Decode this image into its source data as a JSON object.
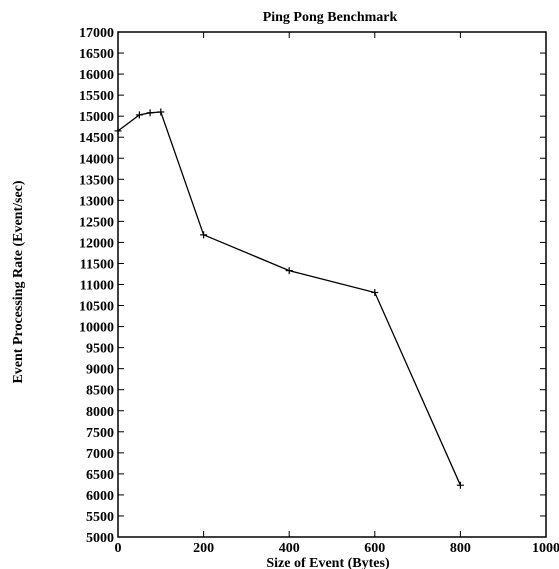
{
  "chart_data": {
    "type": "line",
    "title": "Ping Pong Benchmark",
    "xlabel": "Size of  Event (Bytes)",
    "ylabel": "Event Processing Rate (Event/sec)",
    "xlim": [
      0,
      1000
    ],
    "ylim": [
      5000,
      17000
    ],
    "xticks": [
      0,
      200,
      400,
      600,
      800,
      1000
    ],
    "yticks": [
      5000,
      5500,
      6000,
      6500,
      7000,
      7500,
      8000,
      8500,
      9000,
      9500,
      10000,
      10500,
      11000,
      11500,
      12000,
      12500,
      13000,
      13500,
      14000,
      14500,
      15000,
      15500,
      16000,
      16500,
      17000
    ],
    "xtick_labels": [
      "0",
      "200",
      "400",
      "600",
      "800",
      "1000"
    ],
    "ytick_labels": [
      "5000",
      "5500",
      "6000",
      "6500",
      "7000",
      "7500",
      "8000",
      "8500",
      "9000",
      "9500",
      "10000",
      "10500",
      "11000",
      "11500",
      "12000",
      "12500",
      "13000",
      "13500",
      "14000",
      "14500",
      "15000",
      "15500",
      "16000",
      "16500",
      "17000"
    ],
    "grid": false,
    "legend": "none",
    "marker": "plus",
    "series": [
      {
        "x": [
          0,
          50,
          75,
          100,
          200,
          400,
          600,
          800
        ],
        "y": [
          14650,
          15030,
          15080,
          15100,
          12180,
          11330,
          10810,
          6230
        ]
      }
    ],
    "colors": {
      "line": "#000000",
      "axis": "#000000"
    }
  }
}
